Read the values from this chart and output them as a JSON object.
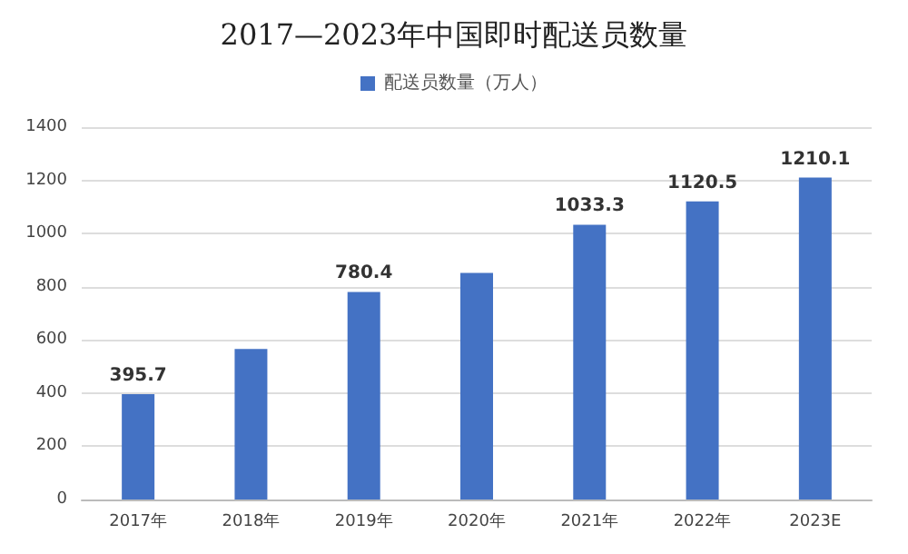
{
  "chart_data": {
    "type": "bar",
    "title": "2017—2023年中国即时配送员数量",
    "categories": [
      "2017年",
      "2018年",
      "2019年",
      "2020年",
      "2021年",
      "2022年",
      "2023E"
    ],
    "series": [
      {
        "name": "配送员数量（万人）",
        "color": "#4472c4",
        "values": [
          395.7,
          566,
          780.4,
          852,
          1033.3,
          1120.5,
          1210.1
        ],
        "value_labels": [
          "395.7",
          null,
          "780.4",
          null,
          "1033.3",
          "1120.5",
          "1210.1"
        ]
      }
    ],
    "ylim": [
      0,
      1400
    ],
    "yticks": [
      0,
      200,
      400,
      600,
      800,
      1000,
      1200,
      1400
    ],
    "grid": "y",
    "legend": "top"
  }
}
